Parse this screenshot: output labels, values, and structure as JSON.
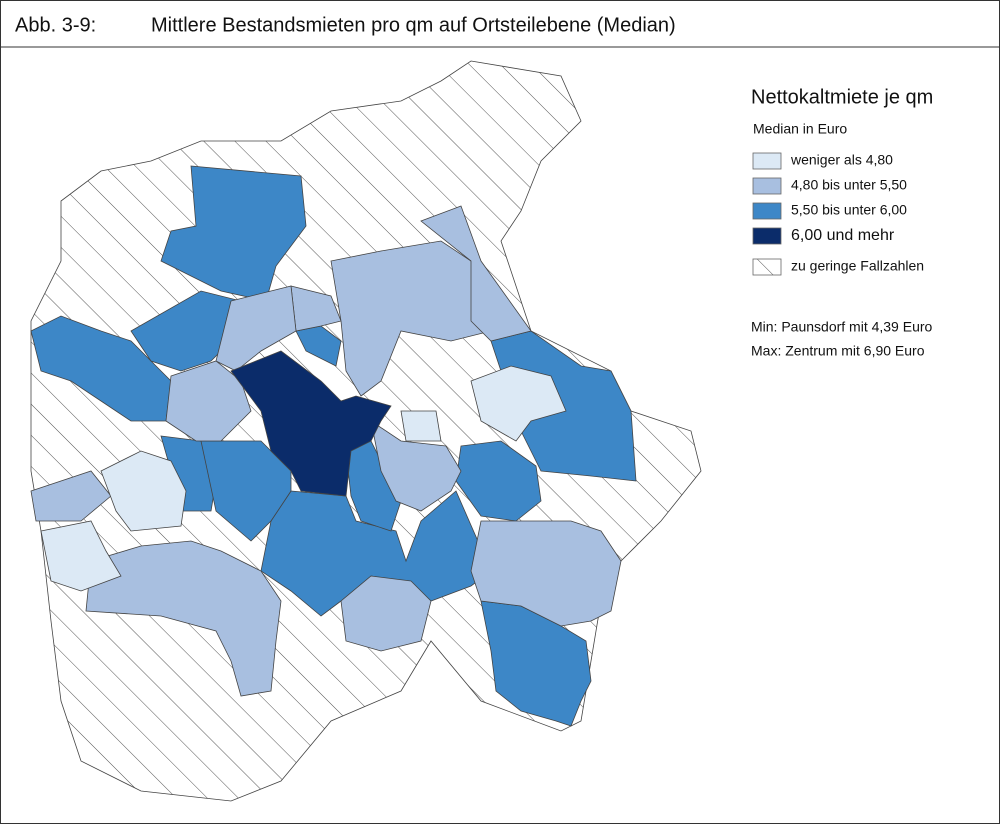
{
  "header": {
    "figure_label": "Abb. 3-9:",
    "title": "Mittlere Bestandsmieten pro qm auf Ortsteilebene (Median)"
  },
  "legend": {
    "title": "Nettokaltmiete je qm",
    "subtitle": "Median in Euro",
    "items": [
      {
        "label": "weniger als 4,80",
        "color": "#dce9f5"
      },
      {
        "label": "4,80 bis unter 5,50",
        "color": "#a8bfe0"
      },
      {
        "label": "5,50 bis unter 6,00",
        "color": "#3d87c7"
      },
      {
        "label": "6,00 und mehr",
        "color": "#0b2c6a"
      },
      {
        "label": "zu geringe Fallzahlen",
        "color": "hatch"
      }
    ]
  },
  "notes": {
    "min": "Min: Paunsdorf mit 4,39 Euro",
    "max": "Max: Zentrum mit 6,90 Euro"
  }
}
